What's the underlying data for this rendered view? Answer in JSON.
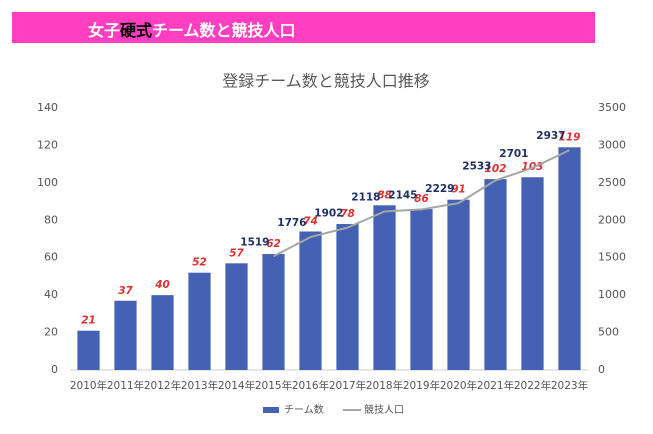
{
  "banner": {
    "segments": [
      "女子",
      "硬式",
      "チーム数と競技人口"
    ]
  },
  "chart_data": {
    "type": "bar",
    "title": "登録チーム数と競技人口推移",
    "categories": [
      "2010年",
      "2011年",
      "2012年",
      "2013年",
      "2014年",
      "2015年",
      "2016年",
      "2017年",
      "2018年",
      "2019年",
      "2020年",
      "2021年",
      "2022年",
      "2023年"
    ],
    "series": [
      {
        "name": "チーム数",
        "type": "bar",
        "color": "#4461b3",
        "label_color": "#e03030",
        "values": [
          21,
          37,
          40,
          52,
          57,
          62,
          74,
          78,
          88,
          86,
          91,
          102,
          103,
          119
        ]
      },
      {
        "name": "競技人口",
        "type": "line",
        "axis": "y2",
        "color": "#a6a6a6",
        "label_color": "#1f3264",
        "values": [
          null,
          null,
          null,
          null,
          null,
          1519,
          1776,
          1902,
          2118,
          2145,
          2229,
          2533,
          2701,
          2937
        ]
      }
    ],
    "ylim": [
      0,
      140
    ],
    "yticks": [
      0,
      20,
      40,
      60,
      80,
      100,
      120,
      140
    ],
    "y2lim": [
      0,
      3500
    ],
    "y2ticks": [
      0,
      500,
      1000,
      1500,
      2000,
      2500,
      3000,
      3500
    ],
    "grid": false,
    "legend": "bottom"
  }
}
